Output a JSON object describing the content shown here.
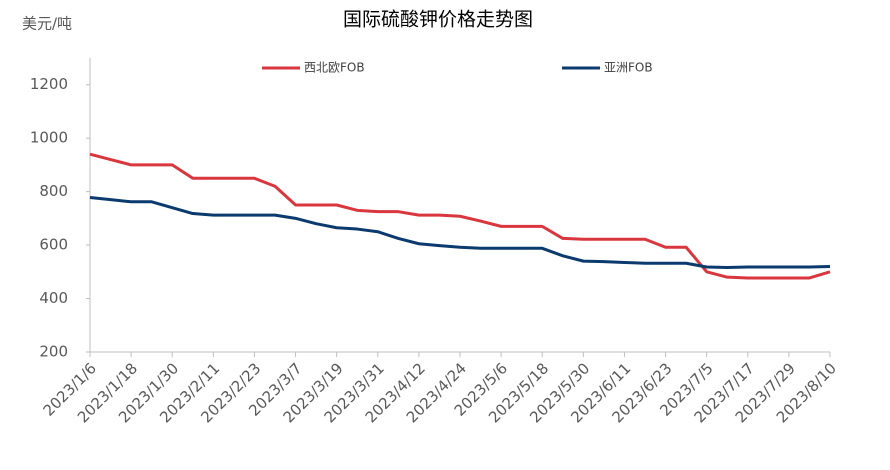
{
  "chart_data": {
    "type": "line",
    "title": "国际硫酸钾价格走势图",
    "y_label": "美元/吨",
    "categories": [
      "2023/1/6",
      null,
      "2023/1/18",
      null,
      "2023/1/30",
      null,
      "2023/2/11",
      null,
      "2023/2/23",
      null,
      "2023/3/7",
      null,
      "2023/3/19",
      null,
      "2023/3/31",
      null,
      "2023/4/12",
      null,
      "2023/4/24",
      null,
      "2023/5/6",
      null,
      "2023/5/18",
      null,
      "2023/5/30",
      null,
      "2023/6/11",
      null,
      "2023/6/23",
      null,
      "2023/7/5",
      null,
      "2023/7/17",
      null,
      "2023/7/29",
      null,
      "2023/8/10"
    ],
    "series": [
      {
        "name": "西北欧FOB",
        "color": "#d9363e",
        "values": [
          940,
          920,
          900,
          900,
          900,
          850,
          850,
          850,
          850,
          820,
          750,
          750,
          750,
          730,
          725,
          725,
          712,
          712,
          708,
          690,
          670,
          670,
          670,
          625,
          622,
          622,
          622,
          622,
          592,
          592,
          500,
          480,
          477,
          477,
          477,
          477,
          500
        ]
      },
      {
        "name": "亚洲FOB",
        "color": "#0b3a6e",
        "values": [
          778,
          770,
          762,
          762,
          740,
          718,
          712,
          712,
          712,
          712,
          700,
          680,
          665,
          660,
          650,
          625,
          605,
          598,
          592,
          588,
          588,
          588,
          588,
          560,
          540,
          538,
          535,
          532,
          532,
          532,
          518,
          516,
          518,
          518,
          518,
          518,
          520
        ]
      }
    ],
    "ylim": [
      200,
      1300
    ],
    "yticks": [
      200,
      400,
      600,
      800,
      1000,
      1200
    ],
    "grid": false
  }
}
